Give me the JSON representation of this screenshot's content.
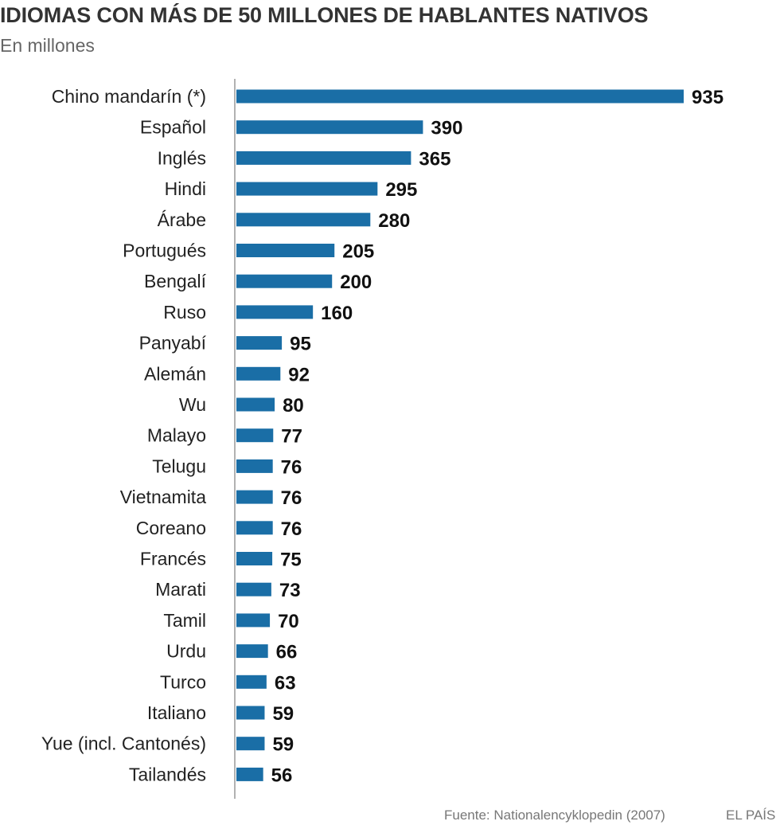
{
  "header": {
    "title": "IDIOMAS CON MÁS DE 50 MILLONES DE HABLANTES NATIVOS",
    "subtitle": "En millones"
  },
  "footer": {
    "source": "Fuente: Nationalencyklopedin (2007)",
    "brand": "EL PAÍS"
  },
  "colors": {
    "bar": "#1a6ea6",
    "axis": "#999999"
  },
  "chart_data": {
    "type": "bar",
    "orientation": "horizontal",
    "title": "IDIOMAS CON MÁS DE 50 MILLONES DE HABLANTES NATIVOS",
    "subtitle": "En millones",
    "categories": [
      "Chino mandarín (*)",
      "Español",
      "Inglés",
      "Hindi",
      "Árabe",
      "Portugués",
      "Bengalí",
      "Ruso",
      "Panyabí",
      "Alemán",
      "Wu",
      "Malayo",
      "Telugu",
      "Vietnamita",
      "Coreano",
      "Francés",
      "Marati",
      "Tamil",
      "Urdu",
      "Turco",
      "Italiano",
      "Yue (incl. Cantonés)",
      "Tailandés"
    ],
    "values": [
      935,
      390,
      365,
      295,
      280,
      205,
      200,
      160,
      95,
      92,
      80,
      77,
      76,
      76,
      76,
      75,
      73,
      70,
      66,
      63,
      59,
      59,
      56
    ],
    "xlim": [
      0,
      935
    ],
    "grid": false,
    "legend": "none"
  }
}
